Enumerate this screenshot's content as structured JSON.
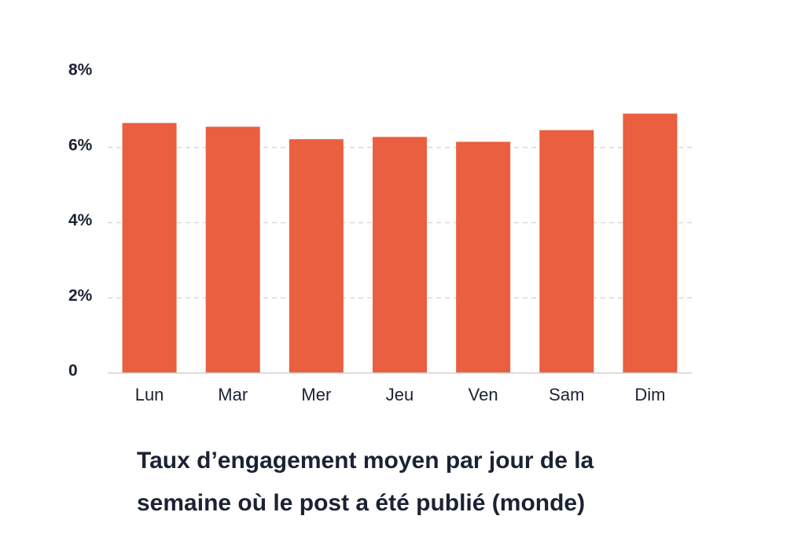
{
  "chart_data": {
    "type": "bar",
    "title": "Taux d’engagement moyen par jour de la semaine où le post a été publié (monde)",
    "categories": [
      "Lun",
      "Mar",
      "Mer",
      "Jeu",
      "Ven",
      "Sam",
      "Dim"
    ],
    "values": [
      6.65,
      6.55,
      6.22,
      6.28,
      6.15,
      6.46,
      6.9
    ],
    "ylim": [
      0,
      8
    ],
    "yticks": [
      {
        "value": 0,
        "label": "0"
      },
      {
        "value": 2,
        "label": "2%"
      },
      {
        "value": 4,
        "label": "4%"
      },
      {
        "value": 6,
        "label": "6%"
      },
      {
        "value": 8,
        "label": "8%"
      }
    ],
    "bar_color": "#e95f3f",
    "grid": true
  }
}
